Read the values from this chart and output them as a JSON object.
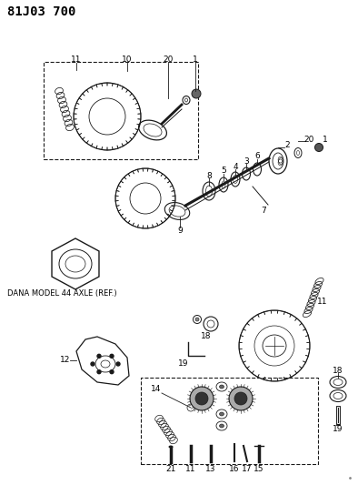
{
  "title": "81J03 700",
  "title_font_size": 10,
  "title_font_weight": "bold",
  "bg_color": "#ffffff",
  "line_color": "#1a1a1a",
  "text_color": "#000000",
  "dana_label": "DANA MODEL 44 AXLE (REF.)",
  "dana_label_fontsize": 6.0,
  "fig_width": 3.94,
  "fig_height": 5.33,
  "dpi": 100
}
